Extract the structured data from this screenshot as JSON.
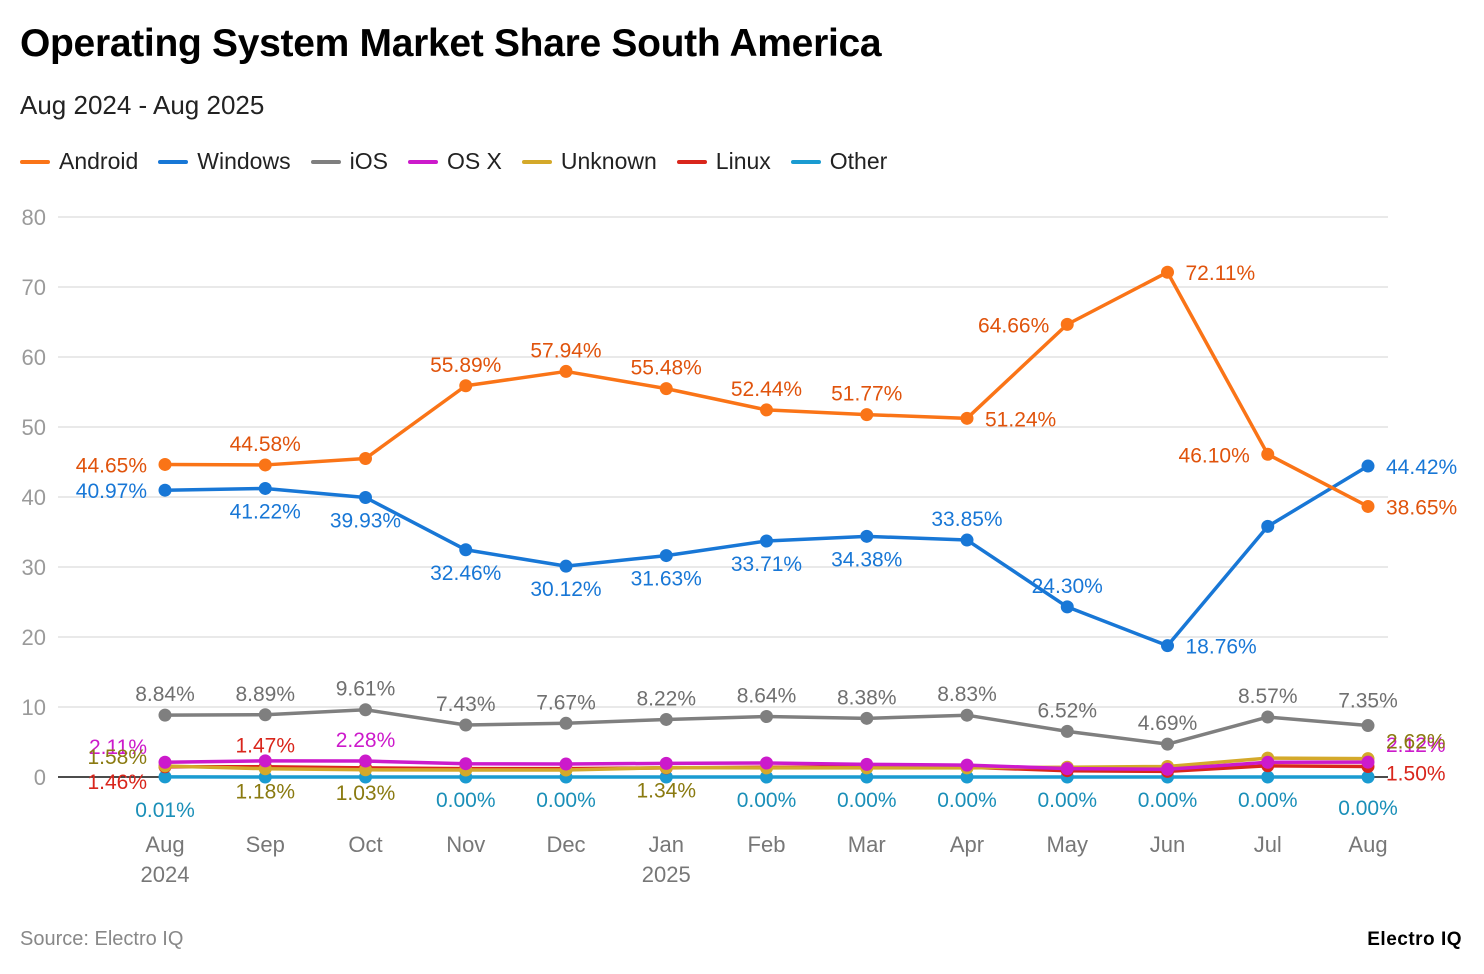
{
  "title": "Operating System Market Share South America",
  "subtitle": "Aug 2024 - Aug 2025",
  "source": "Source: Electro IQ",
  "brand": "Electro IQ",
  "chart_data": {
    "type": "line",
    "title": "Operating System Market Share South America",
    "subtitle": "Aug 2024 - Aug 2025",
    "xlabel": "",
    "ylabel": "",
    "ylim": [
      0,
      80
    ],
    "yticks": [
      0,
      10,
      20,
      30,
      40,
      50,
      60,
      70,
      80
    ],
    "grid": true,
    "legend_position": "top-left",
    "categories": [
      "Aug 2024",
      "Sep",
      "Oct",
      "Nov",
      "Dec",
      "Jan 2025",
      "Feb",
      "Mar",
      "Apr",
      "May",
      "Jun",
      "Jul",
      "Aug"
    ],
    "category_lines": [
      [
        "Aug",
        "2024"
      ],
      [
        "Sep"
      ],
      [
        "Oct"
      ],
      [
        "Nov"
      ],
      [
        "Dec"
      ],
      [
        "Jan",
        "2025"
      ],
      [
        "Feb"
      ],
      [
        "Mar"
      ],
      [
        "Apr"
      ],
      [
        "May"
      ],
      [
        "Jun"
      ],
      [
        "Jul"
      ],
      [
        "Aug"
      ]
    ],
    "series": [
      {
        "name": "Android",
        "color": "#fa7417",
        "label_color": "#e0530c",
        "values": [
          44.65,
          44.58,
          45.5,
          55.89,
          57.94,
          55.48,
          52.44,
          51.77,
          51.24,
          64.66,
          72.11,
          46.1,
          38.65
        ],
        "labels": [
          "44.65%",
          "44.58%",
          "",
          "55.89%",
          "57.94%",
          "55.48%",
          "52.44%",
          "51.77%",
          "51.24%",
          "64.66%",
          "72.11%",
          "46.10%",
          "38.65%"
        ],
        "label_pos": [
          "left",
          "above",
          "none",
          "above",
          "above",
          "above",
          "above",
          "above",
          "right",
          "left",
          "right",
          "left",
          "right"
        ]
      },
      {
        "name": "Windows",
        "color": "#1877d6",
        "label_color": "#1877d6",
        "values": [
          40.97,
          41.22,
          39.93,
          32.46,
          30.12,
          31.63,
          33.71,
          34.38,
          33.85,
          24.3,
          18.76,
          35.8,
          44.42
        ],
        "labels": [
          "40.97%",
          "41.22%",
          "39.93%",
          "32.46%",
          "30.12%",
          "31.63%",
          "33.71%",
          "34.38%",
          "33.85%",
          "24.30%",
          "18.76%",
          "",
          "44.42%"
        ],
        "label_pos": [
          "left",
          "below",
          "below",
          "below",
          "below",
          "below",
          "below",
          "below",
          "above",
          "above",
          "right",
          "none",
          "right"
        ]
      },
      {
        "name": "iOS",
        "color": "#7f7f7f",
        "label_color": "#707070",
        "values": [
          8.84,
          8.89,
          9.61,
          7.43,
          7.67,
          8.22,
          8.64,
          8.38,
          8.83,
          6.52,
          4.69,
          8.57,
          7.35
        ],
        "labels": [
          "8.84%",
          "8.89%",
          "9.61%",
          "7.43%",
          "7.67%",
          "8.22%",
          "8.64%",
          "8.38%",
          "8.83%",
          "6.52%",
          "4.69%",
          "8.57%",
          "7.35%"
        ],
        "label_pos": [
          "above",
          "above",
          "above",
          "above",
          "above",
          "above",
          "above",
          "above",
          "above",
          "above",
          "above",
          "above",
          "above"
        ]
      },
      {
        "name": "OS X",
        "color": "#cc1acb",
        "label_color": "#cc1acb",
        "values": [
          2.11,
          2.3,
          2.28,
          1.9,
          1.85,
          1.95,
          2.0,
          1.8,
          1.7,
          1.2,
          1.1,
          2.1,
          2.12
        ],
        "labels": [
          "2.11%",
          "",
          "2.28%",
          "",
          "",
          "",
          "",
          "",
          "",
          "",
          "",
          "",
          "2.12%"
        ],
        "label_pos": [
          "left",
          "none",
          "above",
          "none",
          "none",
          "none",
          "none",
          "none",
          "none",
          "none",
          "none",
          "none",
          "right"
        ]
      },
      {
        "name": "Unknown",
        "color": "#d4a92a",
        "label_color": "#8a7a10",
        "values": [
          1.58,
          1.18,
          1.03,
          1.0,
          1.0,
          1.34,
          1.3,
          1.3,
          1.3,
          1.4,
          1.5,
          2.7,
          2.62
        ],
        "labels": [
          "1.58%",
          "1.18%",
          "1.03%",
          "",
          "",
          "1.34%",
          "",
          "",
          "",
          "",
          "",
          "",
          "2.62%"
        ],
        "label_pos": [
          "left",
          "below",
          "below",
          "none",
          "none",
          "below",
          "none",
          "none",
          "none",
          "none",
          "none",
          "none",
          "right"
        ]
      },
      {
        "name": "Linux",
        "color": "#d9261c",
        "label_color": "#d9261c",
        "values": [
          1.46,
          1.47,
          1.3,
          1.2,
          1.2,
          1.3,
          1.4,
          1.4,
          1.4,
          0.9,
          0.8,
          1.6,
          1.5
        ],
        "labels": [
          "1.46%",
          "1.47%",
          "",
          "",
          "",
          "",
          "",
          "",
          "",
          "",
          "",
          "",
          "1.50%"
        ],
        "label_pos": [
          "left",
          "above",
          "none",
          "none",
          "none",
          "none",
          "none",
          "none",
          "none",
          "none",
          "none",
          "none",
          "right"
        ]
      },
      {
        "name": "Other",
        "color": "#1a9bd1",
        "label_color": "#1a8fb8",
        "values": [
          0.01,
          0.0,
          0.0,
          0.0,
          0.0,
          0.0,
          0.0,
          0.0,
          0.0,
          0.0,
          0.0,
          0.0,
          0.0
        ],
        "labels": [
          "0.01%",
          "",
          "",
          "0.00%",
          "0.00%",
          "",
          "0.00%",
          "0.00%",
          "0.00%",
          "0.00%",
          "0.00%",
          "0.00%",
          "0.00%"
        ],
        "label_pos": [
          "below",
          "none",
          "none",
          "below",
          "below",
          "none",
          "below",
          "below",
          "below",
          "below",
          "below",
          "below",
          "below"
        ]
      }
    ]
  }
}
